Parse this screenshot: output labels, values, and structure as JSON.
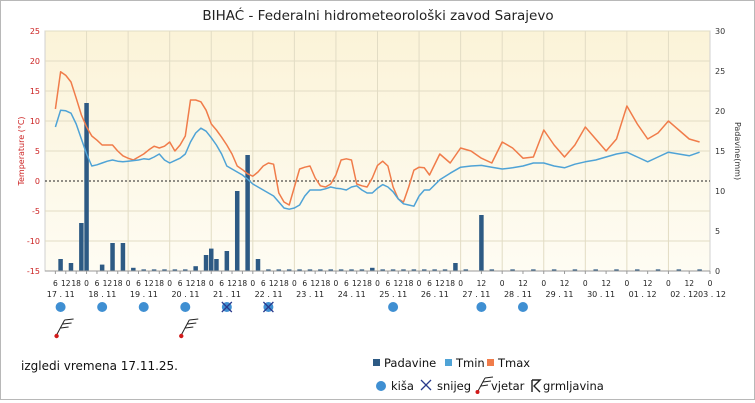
{
  "chart_data": {
    "type": "line",
    "title": "BIHAĆ - Federalni hidrometeorološki zavod Sarajevo",
    "ylabel_left": "Temperature (°C)",
    "ylabel_right": "Padavine(mm)",
    "ylim_left": [
      -15,
      25
    ],
    "ylim_right": [
      0,
      30
    ],
    "yticks_left": [
      "25",
      "20",
      "15",
      "10",
      "5",
      "0",
      "-5",
      "-10",
      "-15"
    ],
    "yticks_right": [
      "30",
      "25",
      "20",
      "15",
      "10",
      "5",
      "0"
    ],
    "grid": true,
    "hour_ticks": [
      {
        "day": 0,
        "hours": [
          "6",
          "12",
          "18"
        ]
      },
      {
        "day": 1,
        "hours": [
          "0",
          "6",
          "12",
          "18"
        ]
      },
      {
        "day": 2,
        "hours": [
          "0",
          "6",
          "12",
          "18"
        ]
      },
      {
        "day": 3,
        "hours": [
          "0",
          "6",
          "12",
          "18"
        ]
      },
      {
        "day": 4,
        "hours": [
          "0",
          "6",
          "12",
          "18"
        ]
      },
      {
        "day": 5,
        "hours": [
          "0",
          "6",
          "12",
          "18"
        ]
      },
      {
        "day": 6,
        "hours": [
          "0",
          "6",
          "12",
          "18"
        ]
      },
      {
        "day": 7,
        "hours": [
          "0",
          "6",
          "12",
          "18"
        ]
      },
      {
        "day": 8,
        "hours": [
          "0",
          "6",
          "12",
          "18"
        ]
      },
      {
        "day": 9,
        "hours": [
          "0",
          "6",
          "12",
          "18"
        ]
      },
      {
        "day": 10,
        "hours": [
          "0",
          "12"
        ]
      },
      {
        "day": 11,
        "hours": [
          "0",
          "12"
        ]
      },
      {
        "day": 12,
        "hours": [
          "0",
          "12"
        ]
      },
      {
        "day": 13,
        "hours": [
          "0",
          "12"
        ]
      },
      {
        "day": 14,
        "hours": [
          "0",
          "12"
        ]
      },
      {
        "day": 15,
        "hours": [
          "0",
          "12"
        ]
      },
      {
        "day": 16,
        "hours": [
          "0"
        ]
      }
    ],
    "days": [
      "17 . 11",
      "18 . 11",
      "19 . 11",
      "20 . 11",
      "21 . 11",
      "22 . 11",
      "23 . 11",
      "24 . 11",
      "25 . 11",
      "26 . 11",
      "27 . 11",
      "28 . 11",
      "29 . 11",
      "30 . 11",
      "01 . 12",
      "02 . 12",
      "03 . 12"
    ],
    "series": [
      {
        "name": "Tmax",
        "color": "#f07c4a",
        "points": [
          [
            0.25,
            12
          ],
          [
            0.375,
            18.2
          ],
          [
            0.5,
            17.6
          ],
          [
            0.625,
            16.5
          ],
          [
            0.75,
            13.8
          ],
          [
            0.875,
            11
          ],
          [
            1,
            9
          ],
          [
            1.125,
            7.5
          ],
          [
            1.25,
            6.8
          ],
          [
            1.375,
            6
          ],
          [
            1.5,
            6
          ],
          [
            1.625,
            6
          ],
          [
            1.75,
            5
          ],
          [
            1.875,
            4.2
          ],
          [
            2,
            3.8
          ],
          [
            2.125,
            3.5
          ],
          [
            2.25,
            4
          ],
          [
            2.375,
            4.5
          ],
          [
            2.5,
            5.2
          ],
          [
            2.625,
            5.8
          ],
          [
            2.75,
            5.5
          ],
          [
            2.875,
            5.8
          ],
          [
            3,
            6.5
          ],
          [
            3.125,
            5
          ],
          [
            3.25,
            6
          ],
          [
            3.375,
            7.5
          ],
          [
            3.5,
            13.5
          ],
          [
            3.625,
            13.5
          ],
          [
            3.75,
            13.2
          ],
          [
            3.875,
            11.8
          ],
          [
            4,
            9.5
          ],
          [
            4.125,
            8.5
          ],
          [
            4.25,
            7.3
          ],
          [
            4.375,
            6
          ],
          [
            4.5,
            4.5
          ],
          [
            4.625,
            2.5
          ],
          [
            4.75,
            1.9
          ],
          [
            4.875,
            1.2
          ],
          [
            5,
            0.8
          ],
          [
            5.125,
            1.5
          ],
          [
            5.25,
            2.5
          ],
          [
            5.375,
            3
          ],
          [
            5.5,
            2.8
          ],
          [
            5.625,
            -2
          ],
          [
            5.75,
            -3.5
          ],
          [
            5.875,
            -4
          ],
          [
            6,
            -1
          ],
          [
            6.125,
            2
          ],
          [
            6.25,
            2.3
          ],
          [
            6.375,
            2.5
          ],
          [
            6.5,
            0.5
          ],
          [
            6.625,
            -0.8
          ],
          [
            6.75,
            -1
          ],
          [
            6.875,
            -0.5
          ],
          [
            7,
            1
          ],
          [
            7.125,
            3.5
          ],
          [
            7.25,
            3.7
          ],
          [
            7.375,
            3.5
          ],
          [
            7.5,
            -0.5
          ],
          [
            7.625,
            -0.8
          ],
          [
            7.75,
            -1
          ],
          [
            7.875,
            0.5
          ],
          [
            8,
            2.6
          ],
          [
            8.125,
            3.3
          ],
          [
            8.25,
            2.5
          ],
          [
            8.375,
            -1
          ],
          [
            8.5,
            -3
          ],
          [
            8.625,
            -3.5
          ],
          [
            8.75,
            -1
          ],
          [
            8.875,
            1.8
          ],
          [
            9,
            2.3
          ],
          [
            9.125,
            2.2
          ],
          [
            9.25,
            1
          ],
          [
            9.5,
            4.5
          ],
          [
            9.75,
            3
          ],
          [
            10,
            5.5
          ],
          [
            10.25,
            5
          ],
          [
            10.5,
            3.8
          ],
          [
            10.75,
            3
          ],
          [
            11,
            6.5
          ],
          [
            11.25,
            5.5
          ],
          [
            11.5,
            3.8
          ],
          [
            11.75,
            4
          ],
          [
            12,
            8.5
          ],
          [
            12.25,
            6
          ],
          [
            12.5,
            4
          ],
          [
            12.75,
            6
          ],
          [
            13,
            9
          ],
          [
            13.25,
            7
          ],
          [
            13.5,
            5
          ],
          [
            13.75,
            7
          ],
          [
            14,
            12.5
          ],
          [
            14.25,
            9.5
          ],
          [
            14.5,
            7
          ],
          [
            14.75,
            8
          ],
          [
            15,
            10
          ],
          [
            15.25,
            8.5
          ],
          [
            15.5,
            7
          ],
          [
            15.75,
            6.5
          ]
        ]
      },
      {
        "name": "Tmin",
        "color": "#4fa3d6",
        "points": [
          [
            0.25,
            9
          ],
          [
            0.375,
            11.8
          ],
          [
            0.5,
            11.7
          ],
          [
            0.625,
            11.3
          ],
          [
            0.75,
            9.5
          ],
          [
            0.875,
            7
          ],
          [
            1,
            4.5
          ],
          [
            1.125,
            2.5
          ],
          [
            1.25,
            2.7
          ],
          [
            1.375,
            3
          ],
          [
            1.5,
            3.3
          ],
          [
            1.625,
            3.5
          ],
          [
            1.75,
            3.3
          ],
          [
            1.875,
            3.2
          ],
          [
            2,
            3.3
          ],
          [
            2.125,
            3.4
          ],
          [
            2.25,
            3.5
          ],
          [
            2.375,
            3.7
          ],
          [
            2.5,
            3.6
          ],
          [
            2.625,
            4
          ],
          [
            2.75,
            4.5
          ],
          [
            2.875,
            3.5
          ],
          [
            3,
            3
          ],
          [
            3.125,
            3.4
          ],
          [
            3.25,
            3.8
          ],
          [
            3.375,
            4.5
          ],
          [
            3.5,
            6.5
          ],
          [
            3.625,
            8
          ],
          [
            3.75,
            8.8
          ],
          [
            3.875,
            8.3
          ],
          [
            4,
            7.2
          ],
          [
            4.125,
            6
          ],
          [
            4.25,
            4.5
          ],
          [
            4.375,
            2.5
          ],
          [
            4.5,
            2
          ],
          [
            4.625,
            1.5
          ],
          [
            4.75,
            1
          ],
          [
            4.875,
            0.3
          ],
          [
            5,
            -0.5
          ],
          [
            5.125,
            -1
          ],
          [
            5.25,
            -1.5
          ],
          [
            5.375,
            -2
          ],
          [
            5.5,
            -2.5
          ],
          [
            5.625,
            -3.5
          ],
          [
            5.75,
            -4.5
          ],
          [
            5.875,
            -4.7
          ],
          [
            6,
            -4.5
          ],
          [
            6.125,
            -4
          ],
          [
            6.25,
            -2.5
          ],
          [
            6.375,
            -1.5
          ],
          [
            6.5,
            -1.5
          ],
          [
            6.625,
            -1.5
          ],
          [
            6.75,
            -1.3
          ],
          [
            6.875,
            -1
          ],
          [
            7,
            -1.2
          ],
          [
            7.125,
            -1.3
          ],
          [
            7.25,
            -1.5
          ],
          [
            7.375,
            -1
          ],
          [
            7.5,
            -0.8
          ],
          [
            7.625,
            -1.5
          ],
          [
            7.75,
            -2
          ],
          [
            7.875,
            -2
          ],
          [
            8,
            -1.2
          ],
          [
            8.125,
            -0.6
          ],
          [
            8.25,
            -1
          ],
          [
            8.375,
            -1.8
          ],
          [
            8.5,
            -3
          ],
          [
            8.625,
            -3.8
          ],
          [
            8.75,
            -4
          ],
          [
            8.875,
            -4.2
          ],
          [
            9,
            -2.5
          ],
          [
            9.125,
            -1.5
          ],
          [
            9.25,
            -1.5
          ],
          [
            9.5,
            0.2
          ],
          [
            9.75,
            1.3
          ],
          [
            10,
            2.3
          ],
          [
            10.25,
            2.5
          ],
          [
            10.5,
            2.6
          ],
          [
            10.75,
            2.3
          ],
          [
            11,
            2
          ],
          [
            11.25,
            2.2
          ],
          [
            11.5,
            2.5
          ],
          [
            11.75,
            3
          ],
          [
            12,
            3
          ],
          [
            12.25,
            2.5
          ],
          [
            12.5,
            2.2
          ],
          [
            12.75,
            2.8
          ],
          [
            13,
            3.2
          ],
          [
            13.25,
            3.5
          ],
          [
            13.5,
            4
          ],
          [
            13.75,
            4.5
          ],
          [
            14,
            4.8
          ],
          [
            14.25,
            4
          ],
          [
            14.5,
            3.2
          ],
          [
            14.75,
            4
          ],
          [
            15,
            4.8
          ],
          [
            15.25,
            4.5
          ],
          [
            15.5,
            4.2
          ],
          [
            15.75,
            4.8
          ]
        ]
      },
      {
        "name": "Padavine",
        "color": "#2d5a84",
        "unit": "mm",
        "bars": [
          [
            0.375,
            1.5
          ],
          [
            0.625,
            1
          ],
          [
            0.875,
            6
          ],
          [
            1,
            21
          ],
          [
            1.375,
            0.8
          ],
          [
            1.625,
            3.5
          ],
          [
            1.875,
            3.5
          ],
          [
            2.125,
            0.4
          ],
          [
            2.375,
            0.2
          ],
          [
            2.625,
            0.2
          ],
          [
            2.875,
            0.2
          ],
          [
            3.125,
            0.2
          ],
          [
            3.375,
            0.2
          ],
          [
            3.625,
            0.6
          ],
          [
            3.875,
            2
          ],
          [
            4,
            2.8
          ],
          [
            4.125,
            1.5
          ],
          [
            4.375,
            2.5
          ],
          [
            4.625,
            10
          ],
          [
            4.875,
            14.5
          ],
          [
            5.125,
            1.5
          ],
          [
            5.375,
            0.2
          ],
          [
            5.625,
            0.2
          ],
          [
            5.875,
            0.2
          ],
          [
            6.125,
            0.2
          ],
          [
            6.375,
            0.2
          ],
          [
            6.625,
            0.2
          ],
          [
            6.875,
            0.2
          ],
          [
            7.125,
            0.2
          ],
          [
            7.375,
            0.2
          ],
          [
            7.625,
            0.2
          ],
          [
            7.875,
            0.4
          ],
          [
            8.125,
            0.2
          ],
          [
            8.375,
            0.2
          ],
          [
            8.625,
            0.2
          ],
          [
            8.875,
            0.2
          ],
          [
            9.125,
            0.2
          ],
          [
            9.375,
            0.2
          ],
          [
            9.625,
            0.2
          ],
          [
            9.875,
            1
          ],
          [
            10.125,
            0.2
          ],
          [
            10.5,
            7
          ],
          [
            10.75,
            0.2
          ],
          [
            11.25,
            0.2
          ],
          [
            11.75,
            0.2
          ],
          [
            12.25,
            0.2
          ],
          [
            12.75,
            0.2
          ],
          [
            13.25,
            0.2
          ],
          [
            13.75,
            0.2
          ],
          [
            14.25,
            0.2
          ],
          [
            14.75,
            0.2
          ],
          [
            15.25,
            0.2
          ],
          [
            15.75,
            0.2
          ]
        ]
      }
    ],
    "weather_icons": [
      {
        "t": 0.375,
        "type": "kisa"
      },
      {
        "t": 1.375,
        "type": "kisa"
      },
      {
        "t": 2.375,
        "type": "kisa"
      },
      {
        "t": 3.375,
        "type": "kisa"
      },
      {
        "t": 4.375,
        "type": "kisa-snijeg"
      },
      {
        "t": 5.375,
        "type": "kisa-snijeg"
      },
      {
        "t": 8.375,
        "type": "kisa"
      },
      {
        "t": 10.5,
        "type": "kisa"
      },
      {
        "t": 11.5,
        "type": "kisa"
      }
    ],
    "wind_icons": [
      {
        "t": 0.375
      },
      {
        "t": 3.375
      }
    ]
  },
  "footer": {
    "forecast_date": "izgledi vremena 17.11.25."
  },
  "legend": {
    "series": [
      "Padavine",
      "Tmin",
      "Tmax"
    ],
    "symbols": [
      {
        "icon": "rain-icon",
        "label": "kiša"
      },
      {
        "icon": "snow-icon",
        "label": "snijeg"
      },
      {
        "icon": "wind-icon",
        "label": "vjetar"
      },
      {
        "icon": "thunder-icon",
        "label": "grmljavina"
      }
    ]
  }
}
